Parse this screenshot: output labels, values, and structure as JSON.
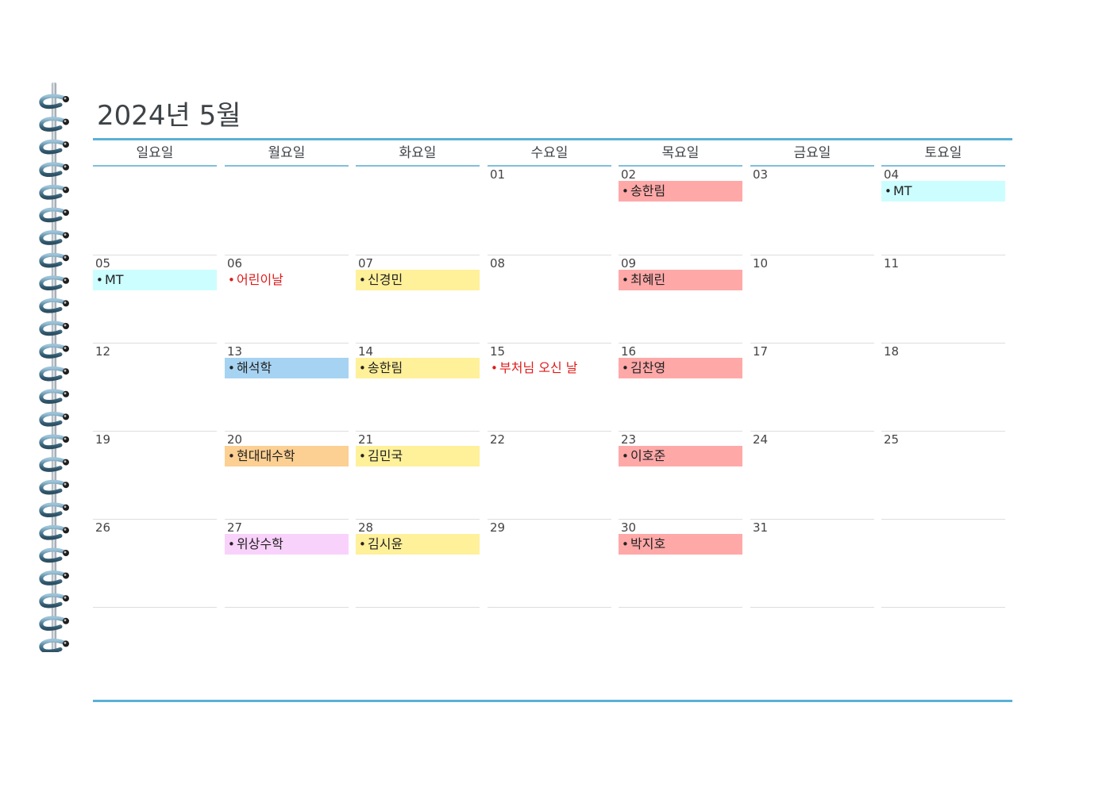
{
  "calendar": {
    "title": "2024년 5월",
    "weekdays": [
      "일요일",
      "월요일",
      "화요일",
      "수요일",
      "목요일",
      "금요일",
      "토요일"
    ],
    "colors": {
      "accent_rule": "#5ab1d6",
      "holiday_text": "#e01a1a",
      "pink": "#ffa8a8",
      "cyan": "#ccfeff",
      "yellow": "#fff09a",
      "blue": "#a7d3f2",
      "orange": "#fccf92",
      "lilac": "#f9d2fb"
    },
    "weeks": [
      [
        {
          "day": "",
          "event": null
        },
        {
          "day": "",
          "event": null
        },
        {
          "day": "",
          "event": null
        },
        {
          "day": "01",
          "event": null
        },
        {
          "day": "02",
          "event": {
            "bullet": "•",
            "text": "송한림",
            "color": "pink"
          }
        },
        {
          "day": "03",
          "event": null
        },
        {
          "day": "04",
          "event": {
            "bullet": "•",
            "text": "MT",
            "color": "cyan"
          }
        }
      ],
      [
        {
          "day": "05",
          "event": {
            "bullet": "•",
            "text": "MT",
            "color": "cyan"
          }
        },
        {
          "day": "06",
          "event": {
            "bullet": "•",
            "text": "어린이날",
            "color": "holiday"
          }
        },
        {
          "day": "07",
          "event": {
            "bullet": "•",
            "text": "신경민",
            "color": "yellow"
          }
        },
        {
          "day": "08",
          "event": null
        },
        {
          "day": "09",
          "event": {
            "bullet": "•",
            "text": "최혜린",
            "color": "pink"
          }
        },
        {
          "day": "10",
          "event": null
        },
        {
          "day": "11",
          "event": null
        }
      ],
      [
        {
          "day": "12",
          "event": null
        },
        {
          "day": "13",
          "event": {
            "bullet": "•",
            "text": "해석학",
            "color": "blue"
          }
        },
        {
          "day": "14",
          "event": {
            "bullet": "•",
            "text": "송한림",
            "color": "yellow"
          }
        },
        {
          "day": "15",
          "event": {
            "bullet": "•",
            "text": "부처님 오신 날",
            "color": "holiday"
          }
        },
        {
          "day": "16",
          "event": {
            "bullet": "•",
            "text": "김찬영",
            "color": "pink"
          }
        },
        {
          "day": "17",
          "event": null
        },
        {
          "day": "18",
          "event": null
        }
      ],
      [
        {
          "day": "19",
          "event": null
        },
        {
          "day": "20",
          "event": {
            "bullet": "•",
            "text": "현대대수학",
            "color": "orange"
          }
        },
        {
          "day": "21",
          "event": {
            "bullet": "•",
            "text": "김민국",
            "color": "yellow"
          }
        },
        {
          "day": "22",
          "event": null
        },
        {
          "day": "23",
          "event": {
            "bullet": "•",
            "text": "이호준",
            "color": "pink"
          }
        },
        {
          "day": "24",
          "event": null
        },
        {
          "day": "25",
          "event": null
        }
      ],
      [
        {
          "day": "26",
          "event": null
        },
        {
          "day": "27",
          "event": {
            "bullet": "•",
            "text": "위상수학",
            "color": "lilac"
          }
        },
        {
          "day": "28",
          "event": {
            "bullet": "•",
            "text": "김시윤",
            "color": "yellow"
          }
        },
        {
          "day": "29",
          "event": null
        },
        {
          "day": "30",
          "event": {
            "bullet": "•",
            "text": "박지호",
            "color": "pink"
          }
        },
        {
          "day": "31",
          "event": null
        },
        {
          "day": "",
          "event": null
        }
      ],
      [
        {
          "day": "",
          "event": null
        },
        {
          "day": "",
          "event": null
        },
        {
          "day": "",
          "event": null
        },
        {
          "day": "",
          "event": null
        },
        {
          "day": "",
          "event": null
        },
        {
          "day": "",
          "event": null
        },
        {
          "day": "",
          "event": null
        }
      ]
    ]
  },
  "binding": {
    "icon": "spiral-binding-icon"
  }
}
